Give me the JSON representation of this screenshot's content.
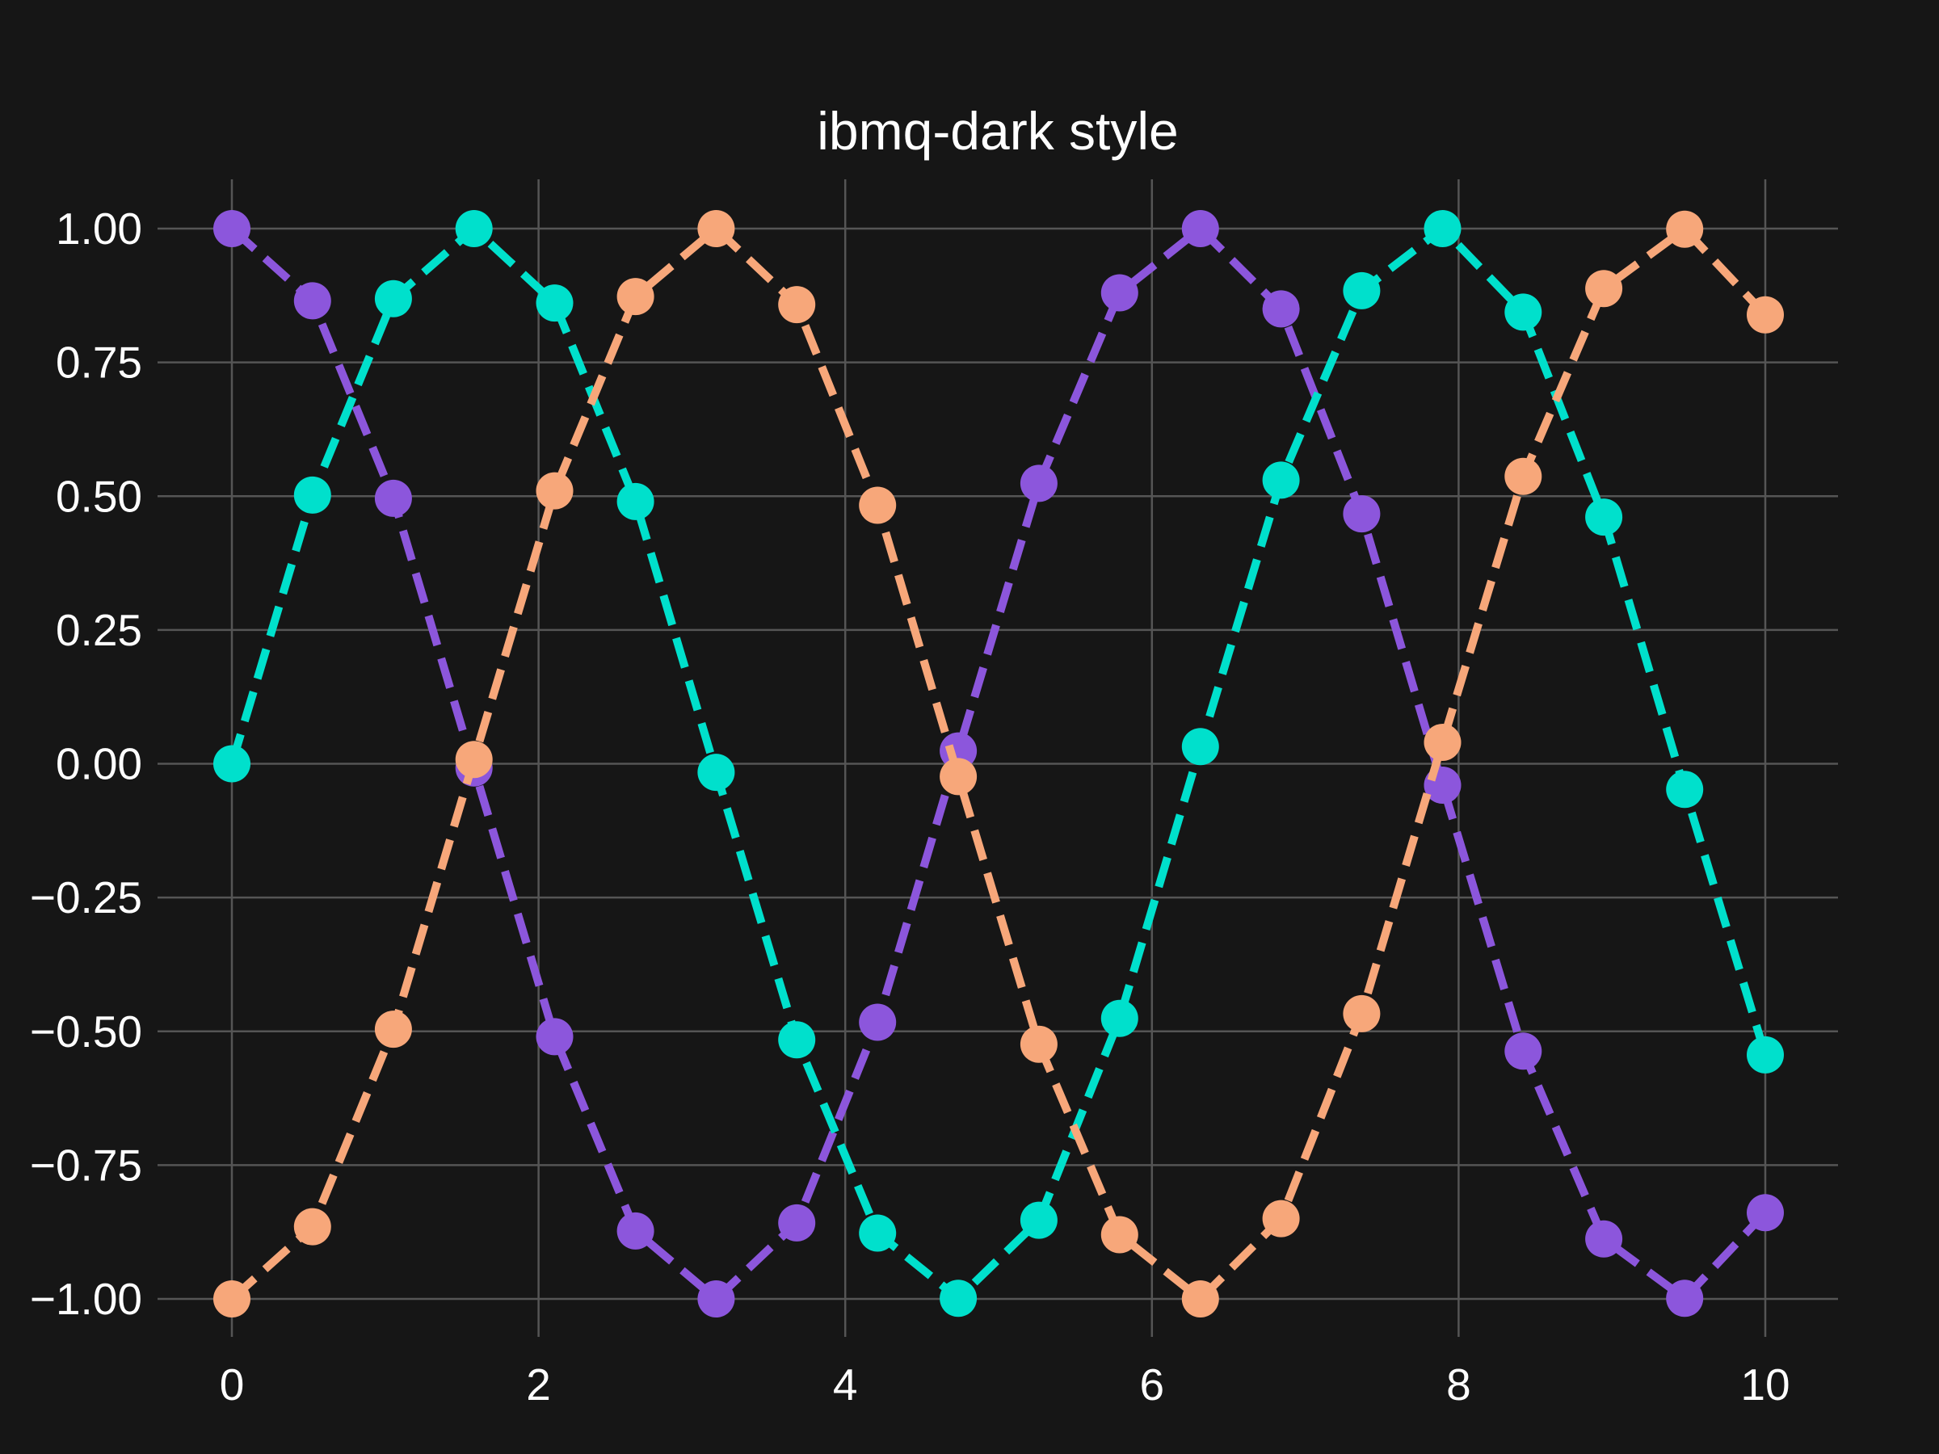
{
  "colors": {
    "background": "#161616",
    "grid": "#555555",
    "text": "#ffffff"
  },
  "chart_data": {
    "type": "line",
    "title": "ibmq-dark style",
    "xlabel": "",
    "ylabel": "",
    "xlim": [
      -0.5,
      10.5
    ],
    "ylim": [
      -1.08,
      1.08
    ],
    "xticks": [
      0,
      2,
      4,
      6,
      8,
      10
    ],
    "xtick_labels": [
      "0",
      "2",
      "4",
      "6",
      "8",
      "10"
    ],
    "yticks": [
      1.0,
      0.75,
      0.5,
      0.25,
      0.0,
      -0.25,
      -0.5,
      -0.75,
      -1.0
    ],
    "ytick_labels": [
      "1.00",
      "0.75",
      "0.50",
      "0.25",
      "0.00",
      "−0.25",
      "−0.50",
      "−0.75",
      "−1.00"
    ],
    "grid": true,
    "legend": false,
    "line_style": "dashed",
    "marker": "circle",
    "x": [
      0,
      0.526,
      1.053,
      1.579,
      2.105,
      2.632,
      3.158,
      3.684,
      4.211,
      4.737,
      5.263,
      5.789,
      6.316,
      6.842,
      7.368,
      7.895,
      8.421,
      8.947,
      9.474,
      10.0
    ],
    "series": [
      {
        "color": "#8c56dc",
        "values": [
          1.0,
          0.865,
          0.496,
          -0.008,
          -0.51,
          -0.873,
          -1.0,
          -0.858,
          -0.483,
          0.024,
          0.524,
          0.88,
          1.0,
          0.85,
          0.467,
          -0.04,
          -0.537,
          -0.888,
          -0.999,
          -0.839
        ]
      },
      {
        "color": "#00e0cc",
        "values": [
          0.0,
          0.502,
          0.869,
          1.0,
          0.861,
          0.49,
          -0.016,
          -0.516,
          -0.877,
          -0.999,
          -0.853,
          -0.476,
          0.032,
          0.53,
          0.884,
          1.0,
          0.844,
          0.461,
          -0.048,
          -0.544
        ]
      },
      {
        "color": "#f7a77a",
        "values": [
          -1.0,
          -0.865,
          -0.496,
          0.008,
          0.51,
          0.873,
          1.0,
          0.858,
          0.483,
          -0.024,
          -0.524,
          -0.88,
          -1.0,
          -0.85,
          -0.467,
          0.04,
          0.537,
          0.888,
          0.999,
          0.839
        ]
      }
    ]
  }
}
